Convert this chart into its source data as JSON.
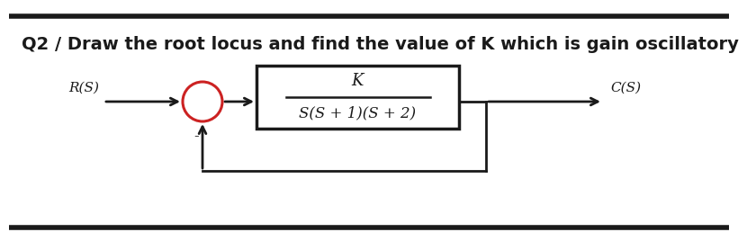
{
  "title": "Q2 / Draw the root locus and find the value of K which is gain oscillatory",
  "title_fontsize": 14,
  "title_fontweight": "bold",
  "background_color": "#ffffff",
  "line_color": "#1a1a1a",
  "numerator": "K",
  "denominator": "S(S + 1)(S + 2)",
  "circle_color": "#cc2222",
  "circle_linewidth": 2.2,
  "input_label": "R(S)",
  "output_label": "C(S)",
  "minus_label": "-"
}
